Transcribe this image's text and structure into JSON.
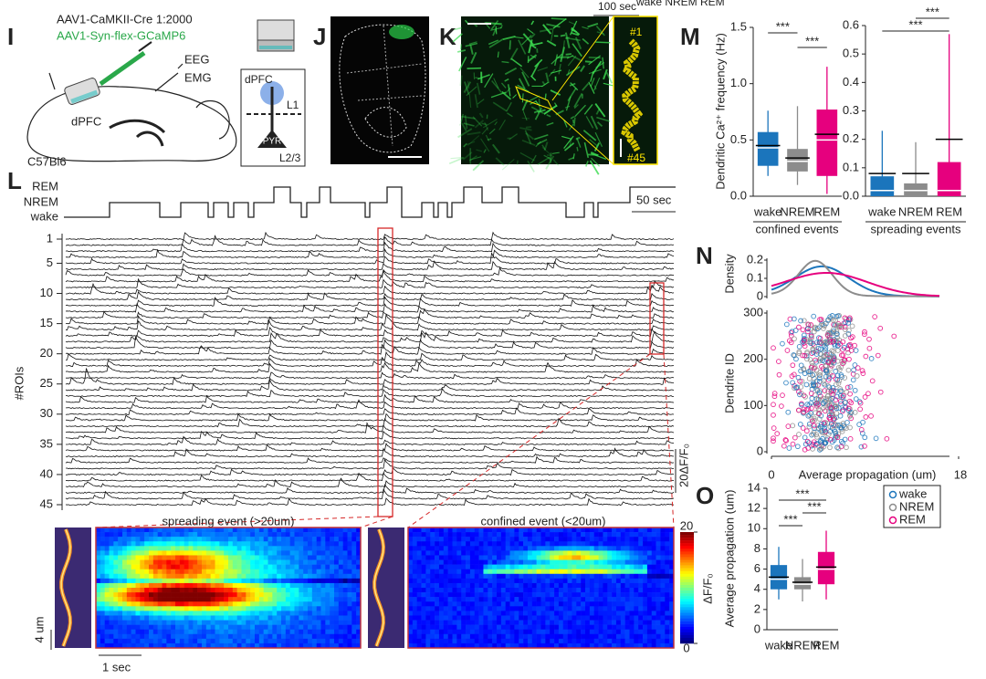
{
  "cropped_header": "wake NREM REM",
  "I": {
    "label": "I",
    "virus_cre": "AAV1-CaMKII-Cre 1:2000",
    "virus_flex": "AAV1-Syn-flex-GCaMP6",
    "eeg": "EEG",
    "emg": "EMG",
    "region": "dPFC",
    "strain": "C57Bl6",
    "inset": {
      "region": "dPFC",
      "layer1": "L1",
      "cell": "PYR",
      "layer23": "L2/3"
    }
  },
  "J": {
    "label": "J"
  },
  "K": {
    "label": "K",
    "scale": "100 sec",
    "first_roi": "#1",
    "last_roi": "#45"
  },
  "L": {
    "label": "L",
    "states": [
      "REM",
      "NREM",
      "wake"
    ],
    "scale": "50 sec",
    "ylabel": "#ROIs",
    "roi_ticks": [
      1,
      5,
      10,
      15,
      20,
      25,
      30,
      35,
      40,
      45
    ],
    "amplitude_scale": "20ΔF/F₀",
    "spreading_title": "spreading event (>20um)",
    "confined_title": "confined event (<20um)",
    "colorbar_ticks": [
      0,
      20
    ],
    "colorbar_label": "ΔF/F₀",
    "space_scale": "4 um",
    "time_scale": "1 sec"
  },
  "M": {
    "label": "M",
    "confined": {
      "ylabel": "Dendritic Ca²⁺ frequency (Hz)",
      "group_label": "confined events",
      "categories": [
        "wake",
        "NREM",
        "REM"
      ],
      "colors": [
        "#1b75bc",
        "#8c8c8c",
        "#e6007e"
      ],
      "ylim": [
        0,
        1.5
      ],
      "yticks": [
        {
          "value": 0,
          "label": "0.0"
        },
        0.5,
        {
          "value": 1,
          "label": "1.0"
        },
        1.5
      ],
      "boxes": [
        {
          "whisker_low": 0.18,
          "q1": 0.27,
          "median": 0.43,
          "mean": 0.45,
          "q3": 0.57,
          "whisker_high": 0.76
        },
        {
          "whisker_low": 0.1,
          "q1": 0.22,
          "median": 0.31,
          "mean": 0.34,
          "q3": 0.42,
          "whisker_high": 0.8
        },
        {
          "whisker_low": 0.02,
          "q1": 0.18,
          "median": 0.5,
          "mean": 0.55,
          "q3": 0.77,
          "whisker_high": 1.15
        }
      ],
      "significance": [
        "***",
        "***"
      ]
    },
    "spreading": {
      "group_label": "spreading events",
      "categories": [
        "wake",
        "NREM",
        "REM"
      ],
      "colors": [
        "#1b75bc",
        "#8c8c8c",
        "#e6007e"
      ],
      "ylim": [
        0,
        0.6
      ],
      "yticks": [
        {
          "value": 0,
          "label": "0.0"
        },
        0.1,
        0.2,
        0.3,
        0.4,
        0.5,
        0.6
      ],
      "boxes": [
        {
          "whisker_low": 0,
          "q1": 0,
          "median": 0.02,
          "mean": 0.08,
          "q3": 0.07,
          "whisker_high": 0.23
        },
        {
          "whisker_low": 0,
          "q1": 0,
          "median": 0.02,
          "mean": 0.08,
          "q3": 0.045,
          "whisker_high": 0.19
        },
        {
          "whisker_low": 0,
          "q1": 0,
          "median": 0.02,
          "mean": 0.2,
          "q3": 0.12,
          "whisker_high": 0.57
        }
      ],
      "significance": [
        "***",
        "***"
      ]
    }
  },
  "N": {
    "label": "N",
    "density_label": "Density",
    "density_yticks": [
      0,
      0.1,
      0.2
    ],
    "density_ylim": [
      0,
      0.2
    ],
    "scatter_ylabel": "Dendrite ID",
    "scatter_yticks": [
      0,
      100,
      200,
      300
    ],
    "scatter_ylim": [
      0,
      300
    ],
    "xlabel": "Average propagation (um)",
    "xticks": [
      0,
      18
    ],
    "xlim": [
      0,
      18
    ]
  },
  "O": {
    "label": "O",
    "ylabel": "Average propagation (um)",
    "categories": [
      "wake",
      "NREM",
      "REM"
    ],
    "colors": [
      "#1b75bc",
      "#8c8c8c",
      "#e6007e"
    ],
    "ylim": [
      0,
      14
    ],
    "yticks": [
      0,
      2,
      4,
      6,
      8,
      10,
      12,
      14
    ],
    "boxes": [
      {
        "whisker_low": 3,
        "q1": 4,
        "median": 5,
        "mean": 5.2,
        "q3": 6.4,
        "whisker_high": 8.2
      },
      {
        "whisker_low": 2.8,
        "q1": 4,
        "median": 4.5,
        "mean": 4.7,
        "q3": 5.2,
        "whisker_high": 7
      },
      {
        "whisker_low": 3,
        "q1": 4.5,
        "median": 6,
        "mean": 6.2,
        "q3": 7.7,
        "whisker_high": 9.8
      }
    ],
    "significance": [
      "***",
      "***",
      "***"
    ],
    "legend": [
      "wake",
      "NREM",
      "REM"
    ]
  }
}
